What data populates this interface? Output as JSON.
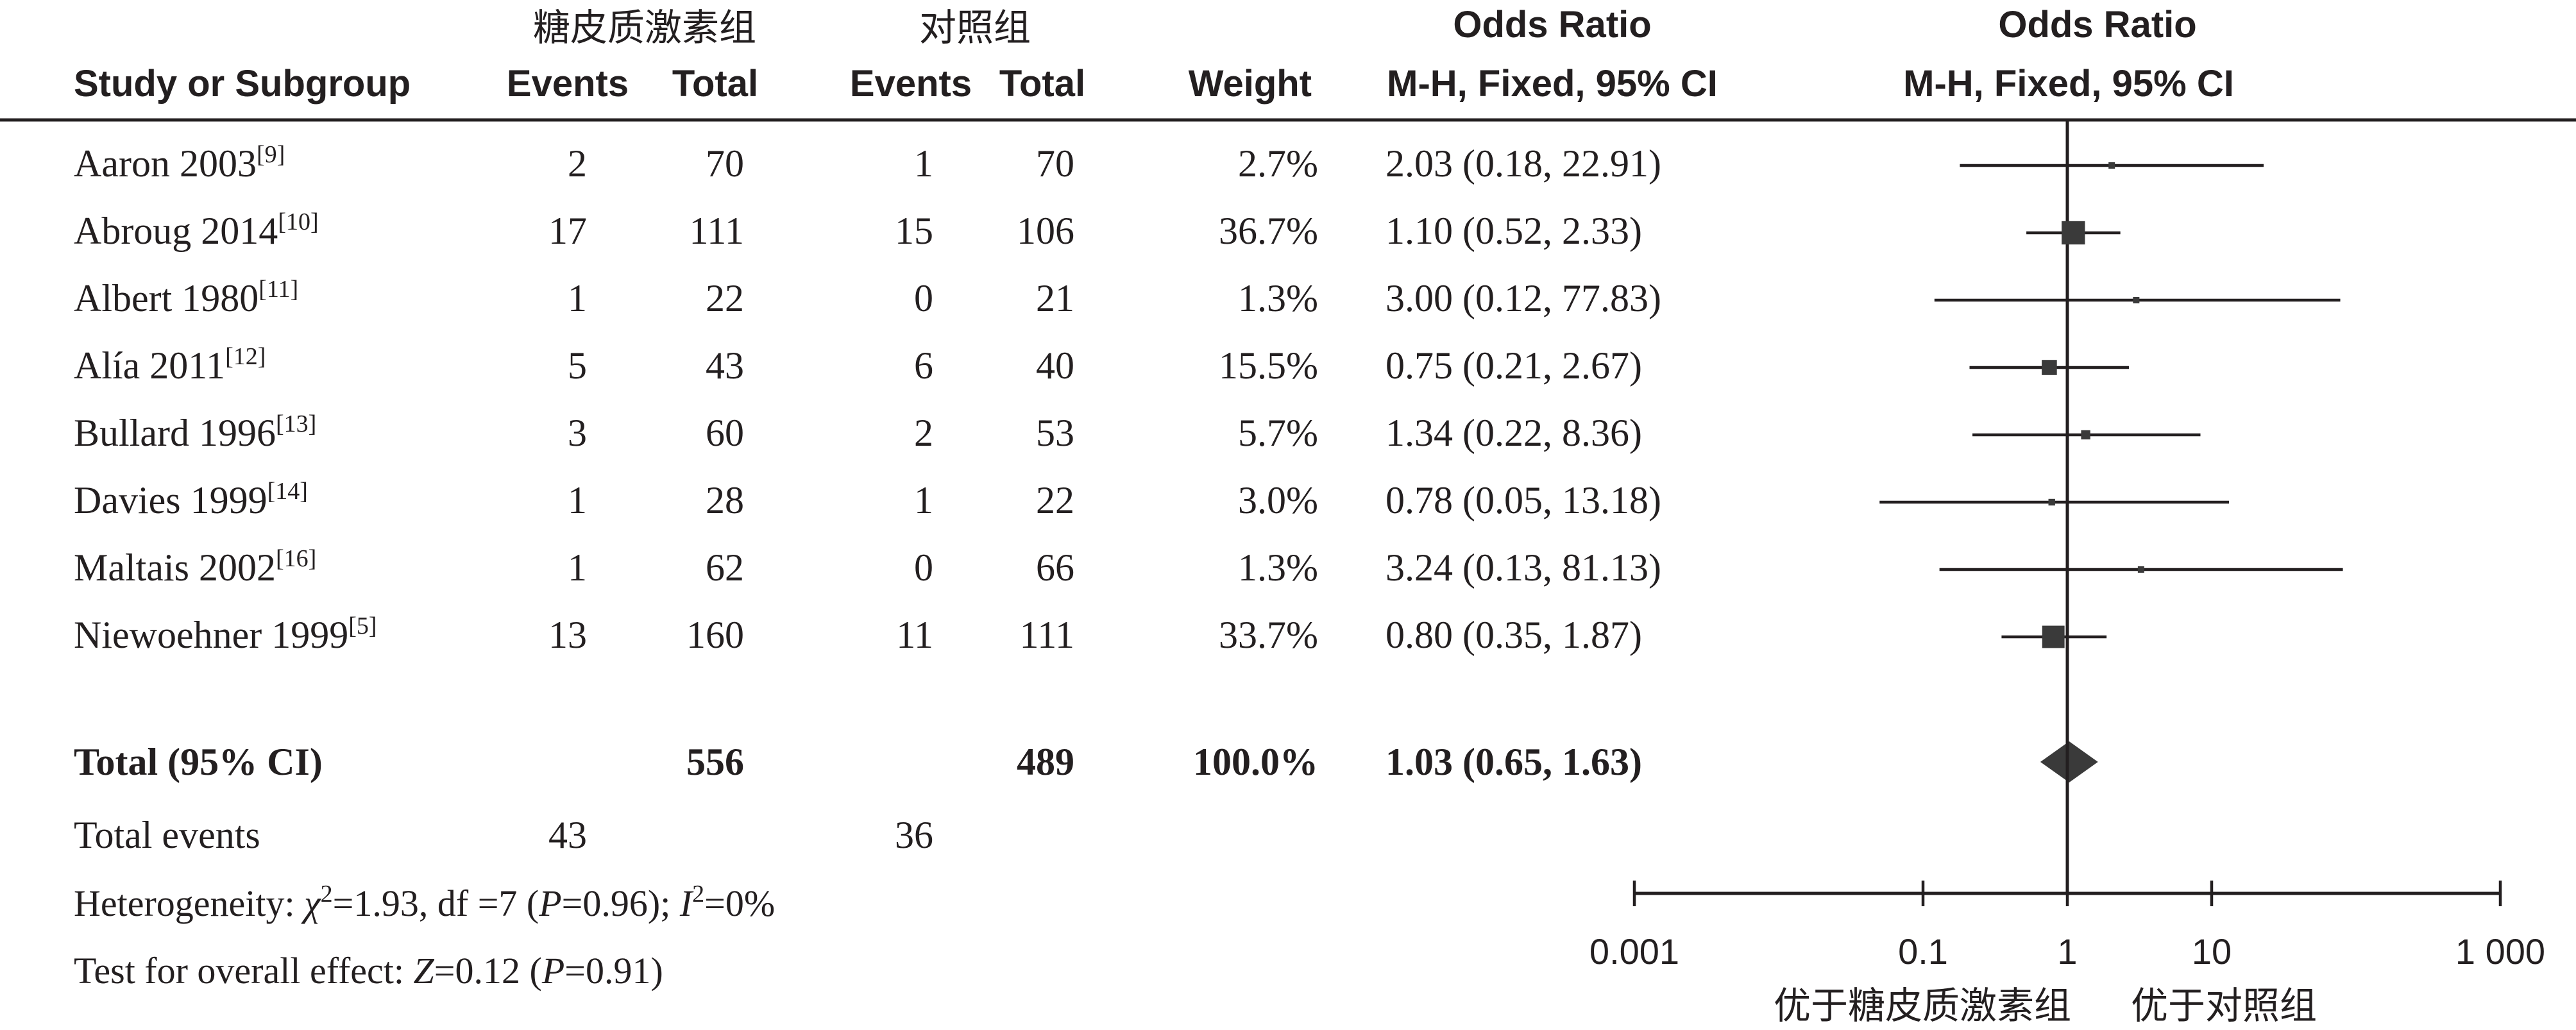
{
  "chart_data": {
    "type": "forest",
    "headers": {
      "group1": "糖皮质激素组",
      "group2": "对照组",
      "study": "Study or Subgroup",
      "events": "Events",
      "total": "Total",
      "weight": "Weight",
      "or_title": "Odds Ratio",
      "or_method": "M-H, Fixed, 95% CI"
    },
    "studies": [
      {
        "name": "Aaron 2003",
        "ref": "[9]",
        "e1": "2",
        "t1": "70",
        "e2": "1",
        "t2": "70",
        "weight": "2.7%",
        "ci_text": "2.03 (0.18, 22.91)",
        "or": 2.03,
        "lo": 0.18,
        "hi": 22.91,
        "w": 2.7
      },
      {
        "name": "Abroug 2014",
        "ref": "[10]",
        "e1": "17",
        "t1": "111",
        "e2": "15",
        "t2": "106",
        "weight": "36.7%",
        "ci_text": "1.10 (0.52, 2.33)",
        "or": 1.1,
        "lo": 0.52,
        "hi": 2.33,
        "w": 36.7
      },
      {
        "name": "Albert 1980",
        "ref": "[11]",
        "e1": "1",
        "t1": "22",
        "e2": "0",
        "t2": "21",
        "weight": "1.3%",
        "ci_text": "3.00 (0.12, 77.83)",
        "or": 3.0,
        "lo": 0.12,
        "hi": 77.83,
        "w": 1.3
      },
      {
        "name": "Alía 2011",
        "ref": "[12]",
        "e1": "5",
        "t1": "43",
        "e2": "6",
        "t2": "40",
        "weight": "15.5%",
        "ci_text": "0.75 (0.21, 2.67)",
        "or": 0.75,
        "lo": 0.21,
        "hi": 2.67,
        "w": 15.5
      },
      {
        "name": "Bullard 1996",
        "ref": "[13]",
        "e1": "3",
        "t1": "60",
        "e2": "2",
        "t2": "53",
        "weight": "5.7%",
        "ci_text": "1.34 (0.22, 8.36)",
        "or": 1.34,
        "lo": 0.22,
        "hi": 8.36,
        "w": 5.7
      },
      {
        "name": "Davies 1999",
        "ref": "[14]",
        "e1": "1",
        "t1": "28",
        "e2": "1",
        "t2": "22",
        "weight": "3.0%",
        "ci_text": "0.78 (0.05, 13.18)",
        "or": 0.78,
        "lo": 0.05,
        "hi": 13.18,
        "w": 3.0
      },
      {
        "name": "Maltais 2002",
        "ref": "[16]",
        "e1": "1",
        "t1": "62",
        "e2": "0",
        "t2": "66",
        "weight": "1.3%",
        "ci_text": "3.24 (0.13, 81.13)",
        "or": 3.24,
        "lo": 0.13,
        "hi": 81.13,
        "w": 1.3
      },
      {
        "name": "Niewoehner 1999",
        "ref": "[5]",
        "e1": "13",
        "t1": "160",
        "e2": "11",
        "t2": "111",
        "weight": "33.7%",
        "ci_text": "0.80 (0.35, 1.87)",
        "or": 0.8,
        "lo": 0.35,
        "hi": 1.87,
        "w": 33.7
      }
    ],
    "total": {
      "label": "Total (95% CI)",
      "t1": "556",
      "t2": "489",
      "weight": "100.0%",
      "ci_text": "1.03 (0.65, 1.63)",
      "or": 1.03,
      "lo": 0.65,
      "hi": 1.63
    },
    "total_events": {
      "label": "Total events",
      "e1": "43",
      "e2": "36"
    },
    "heterogeneity": {
      "prefix": "Heterogeneity: ",
      "chi": "χ",
      "chi_sup": "2",
      "chi_val": "=1.93, df =7 (",
      "p": "P",
      "p_val": "=0.96); ",
      "i": "I",
      "i_sup": "2",
      "i_val": "=0%"
    },
    "overall_effect": {
      "prefix": "Test for overall effect: ",
      "z": "Z",
      "z_val": "=0.12 (",
      "p": "P",
      "p_val": "=0.91)"
    },
    "axis": {
      "scale": "log",
      "range": [
        0.001,
        1000
      ],
      "ticks": [
        0.001,
        0.1,
        1,
        10,
        1000
      ],
      "tick_labels": [
        "0.001",
        "0.1",
        "1",
        "10",
        "1 000"
      ],
      "left_label": "优于糖皮质激素组",
      "right_label": "优于对照组"
    },
    "colors": {
      "ink": "#231f20",
      "marker": "#3a3a3a"
    }
  }
}
